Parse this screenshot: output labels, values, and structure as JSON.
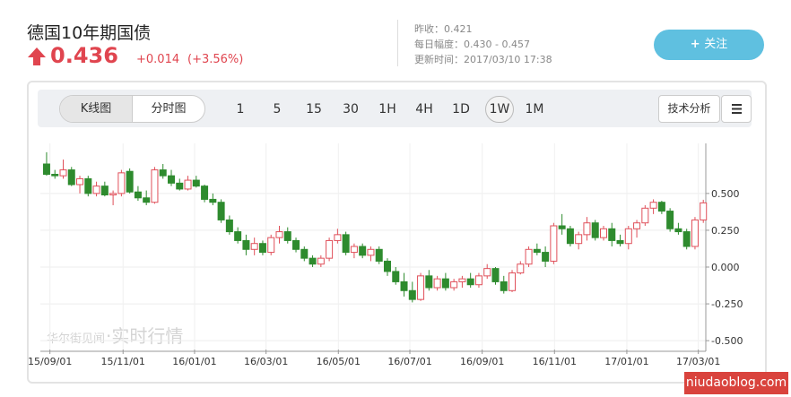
{
  "header": {
    "title": "德国10年期国债",
    "price": "0.436",
    "change": "+0.014",
    "change_pct": "(+3.56%)",
    "prev_close": "昨收：0.421",
    "day_range": "每日幅度：0.430 - 0.457",
    "updated": "更新时间：2017/03/10 17:38",
    "follow_button": "关注"
  },
  "toolbar": {
    "tabs": [
      "K线图",
      "分时图"
    ],
    "periods": [
      "1",
      "5",
      "15",
      "30",
      "1H",
      "4H",
      "1D",
      "1W",
      "1M"
    ],
    "selected_period": "1W",
    "analysis_button": "技术分析"
  },
  "chart_data": {
    "type": "candlestick",
    "up_color": "#e0505a",
    "down_color": "#2e8b2e",
    "candles": [
      [
        0.7,
        0.78,
        0.62,
        0.63
      ],
      [
        0.63,
        0.66,
        0.6,
        0.62
      ],
      [
        0.62,
        0.73,
        0.6,
        0.66
      ],
      [
        0.66,
        0.68,
        0.55,
        0.56
      ],
      [
        0.56,
        0.62,
        0.5,
        0.6
      ],
      [
        0.6,
        0.62,
        0.48,
        0.5
      ],
      [
        0.5,
        0.58,
        0.48,
        0.55
      ],
      [
        0.55,
        0.58,
        0.48,
        0.49
      ],
      [
        0.49,
        0.52,
        0.42,
        0.5
      ],
      [
        0.5,
        0.66,
        0.48,
        0.64
      ],
      [
        0.65,
        0.67,
        0.5,
        0.51
      ],
      [
        0.51,
        0.55,
        0.45,
        0.47
      ],
      [
        0.47,
        0.52,
        0.42,
        0.44
      ],
      [
        0.44,
        0.68,
        0.43,
        0.66
      ],
      [
        0.66,
        0.7,
        0.6,
        0.62
      ],
      [
        0.62,
        0.66,
        0.55,
        0.57
      ],
      [
        0.57,
        0.6,
        0.52,
        0.53
      ],
      [
        0.53,
        0.62,
        0.52,
        0.59
      ],
      [
        0.59,
        0.62,
        0.54,
        0.55
      ],
      [
        0.55,
        0.56,
        0.44,
        0.46
      ],
      [
        0.46,
        0.5,
        0.42,
        0.44
      ],
      [
        0.44,
        0.46,
        0.3,
        0.32
      ],
      [
        0.32,
        0.35,
        0.22,
        0.24
      ],
      [
        0.24,
        0.27,
        0.16,
        0.18
      ],
      [
        0.18,
        0.22,
        0.08,
        0.12
      ],
      [
        0.12,
        0.2,
        0.08,
        0.16
      ],
      [
        0.16,
        0.18,
        0.08,
        0.1
      ],
      [
        0.1,
        0.22,
        0.08,
        0.2
      ],
      [
        0.2,
        0.28,
        0.16,
        0.24
      ],
      [
        0.24,
        0.27,
        0.16,
        0.18
      ],
      [
        0.18,
        0.2,
        0.1,
        0.12
      ],
      [
        0.12,
        0.14,
        0.04,
        0.06
      ],
      [
        0.06,
        0.08,
        0.0,
        0.02
      ],
      [
        0.02,
        0.08,
        0.0,
        0.06
      ],
      [
        0.06,
        0.2,
        0.04,
        0.18
      ],
      [
        0.18,
        0.26,
        0.16,
        0.22
      ],
      [
        0.22,
        0.24,
        0.08,
        0.1
      ],
      [
        0.1,
        0.16,
        0.06,
        0.14
      ],
      [
        0.14,
        0.16,
        0.06,
        0.08
      ],
      [
        0.08,
        0.14,
        0.04,
        0.12
      ],
      [
        0.12,
        0.14,
        0.02,
        0.04
      ],
      [
        0.04,
        0.06,
        -0.06,
        -0.03
      ],
      [
        -0.03,
        0.0,
        -0.12,
        -0.1
      ],
      [
        -0.1,
        -0.04,
        -0.2,
        -0.16
      ],
      [
        -0.16,
        -0.1,
        -0.24,
        -0.22
      ],
      [
        -0.22,
        -0.04,
        -0.23,
        -0.06
      ],
      [
        -0.06,
        -0.02,
        -0.16,
        -0.14
      ],
      [
        -0.14,
        -0.06,
        -0.16,
        -0.08
      ],
      [
        -0.08,
        -0.04,
        -0.16,
        -0.14
      ],
      [
        -0.14,
        -0.08,
        -0.16,
        -0.1
      ],
      [
        -0.1,
        -0.06,
        -0.14,
        -0.08
      ],
      [
        -0.08,
        -0.04,
        -0.14,
        -0.12
      ],
      [
        -0.12,
        -0.04,
        -0.14,
        -0.06
      ],
      [
        -0.06,
        0.02,
        -0.08,
        -0.01
      ],
      [
        -0.01,
        0.0,
        -0.12,
        -0.1
      ],
      [
        -0.1,
        -0.06,
        -0.18,
        -0.16
      ],
      [
        -0.16,
        -0.02,
        -0.17,
        -0.04
      ],
      [
        -0.04,
        0.04,
        -0.05,
        0.02
      ],
      [
        0.02,
        0.14,
        0.0,
        0.12
      ],
      [
        0.12,
        0.16,
        0.08,
        0.1
      ],
      [
        0.1,
        0.14,
        0.0,
        0.04
      ],
      [
        0.04,
        0.3,
        0.02,
        0.28
      ],
      [
        0.28,
        0.36,
        0.22,
        0.26
      ],
      [
        0.26,
        0.28,
        0.14,
        0.16
      ],
      [
        0.16,
        0.24,
        0.12,
        0.22
      ],
      [
        0.22,
        0.34,
        0.18,
        0.3
      ],
      [
        0.3,
        0.32,
        0.18,
        0.2
      ],
      [
        0.2,
        0.28,
        0.18,
        0.26
      ],
      [
        0.26,
        0.3,
        0.14,
        0.18
      ],
      [
        0.18,
        0.22,
        0.14,
        0.16
      ],
      [
        0.16,
        0.28,
        0.12,
        0.26
      ],
      [
        0.26,
        0.32,
        0.2,
        0.3
      ],
      [
        0.3,
        0.42,
        0.28,
        0.4
      ],
      [
        0.4,
        0.46,
        0.36,
        0.44
      ],
      [
        0.44,
        0.45,
        0.36,
        0.38
      ],
      [
        0.38,
        0.4,
        0.24,
        0.26
      ],
      [
        0.26,
        0.3,
        0.22,
        0.24
      ],
      [
        0.24,
        0.26,
        0.12,
        0.14
      ],
      [
        0.14,
        0.34,
        0.12,
        0.32
      ],
      [
        0.32,
        0.457,
        0.3,
        0.436
      ]
    ],
    "ylim": [
      -0.56,
      0.84
    ],
    "yticks": [
      {
        "value": 0.5,
        "label": "0.500"
      },
      {
        "value": 0.25,
        "label": "0.250"
      },
      {
        "value": 0,
        "label": "0.000"
      },
      {
        "value": -0.25,
        "label": "-0.250"
      },
      {
        "value": -0.5,
        "label": "-0.500"
      }
    ],
    "xlim": [
      -0.75,
      79.3
    ],
    "xticks": [
      {
        "value": 0.4,
        "label": "15/09/01"
      },
      {
        "value": 9.2,
        "label": "15/11/01"
      },
      {
        "value": 17.8,
        "label": "16/01/01"
      },
      {
        "value": 26.4,
        "label": "16/03/01"
      },
      {
        "value": 35.1,
        "label": "16/05/01"
      },
      {
        "value": 43.7,
        "label": "16/07/01"
      },
      {
        "value": 52.4,
        "label": "16/09/01"
      },
      {
        "value": 61.1,
        "label": "16/11/01"
      },
      {
        "value": 69.8,
        "label": "17/01/01"
      },
      {
        "value": 78.4,
        "label": "17/03/01"
      }
    ],
    "grid": true,
    "watermark_brand": "华尔街见闻",
    "watermark_text": "·实时行情"
  },
  "site_badge": "niudaoblog.com"
}
